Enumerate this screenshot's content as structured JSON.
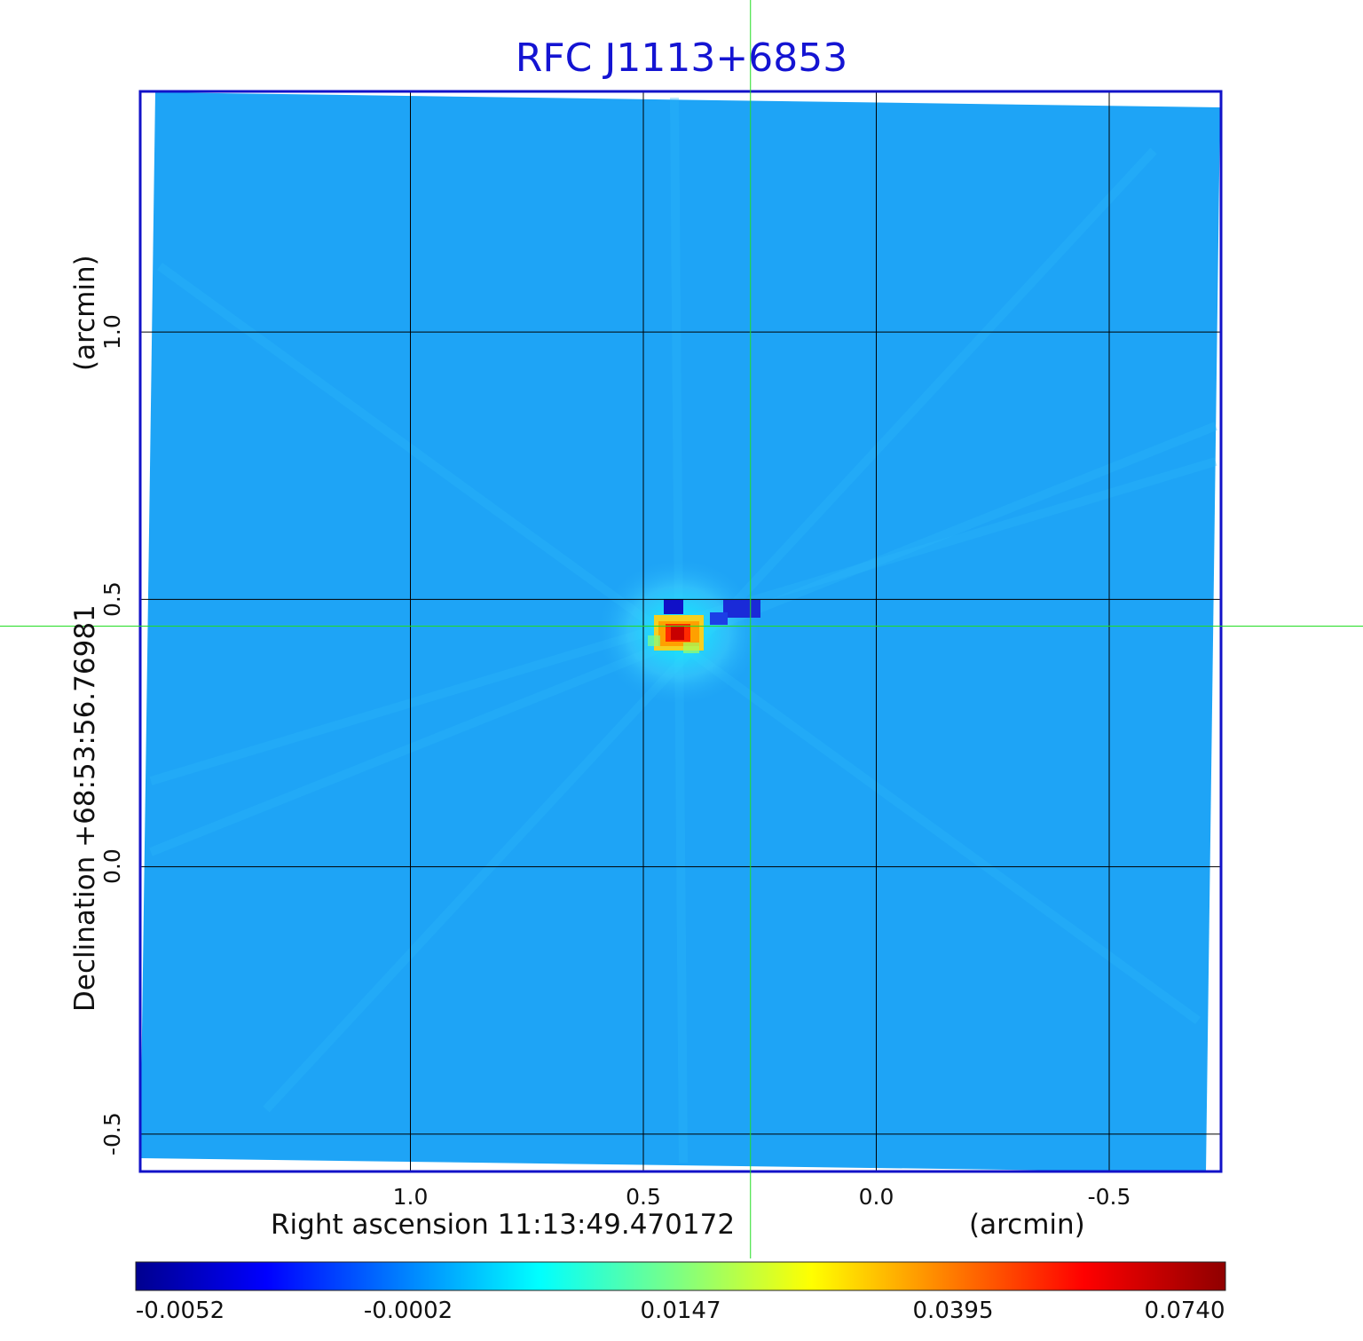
{
  "chart_data": {
    "type": "heatmap",
    "title": "RFC J1113+6853",
    "xlabel": "Right ascension  11:13:49.470172",
    "xunit": "(arcmin)",
    "ylabel": "Declination  +68:53:56.76981",
    "yunit": "(arcmin)",
    "xlim": [
      1.58,
      -0.74
    ],
    "ylim": [
      -0.57,
      1.45
    ],
    "x_ticks": [
      {
        "value": 1.0,
        "label": "1.0"
      },
      {
        "value": 0.5,
        "label": "0.5"
      },
      {
        "value": 0.0,
        "label": "0.0"
      },
      {
        "value": -0.5,
        "label": "-0.5"
      }
    ],
    "y_ticks": [
      {
        "value": 1.0,
        "label": "1.0"
      },
      {
        "value": 0.5,
        "label": "0.5"
      },
      {
        "value": 0.0,
        "label": "0.0"
      },
      {
        "value": -0.5,
        "label": "-0.5"
      }
    ],
    "grid": true,
    "crosshair": {
      "x": 0.27,
      "y": 0.45,
      "color": "#22dd22"
    },
    "peak": {
      "x": 0.28,
      "y": 0.44,
      "value": 0.074
    },
    "colorbar": {
      "colormap": "jet",
      "orientation": "horizontal",
      "placement": "bottom",
      "tick_labels": [
        "-0.0052",
        "-0.0002",
        "0.0147",
        "0.0395",
        "0.0740"
      ]
    },
    "colors": {
      "background_field": "#1ea4f6",
      "frame": "#1212c8",
      "title": "#1414d2",
      "grid": "#000000"
    }
  }
}
